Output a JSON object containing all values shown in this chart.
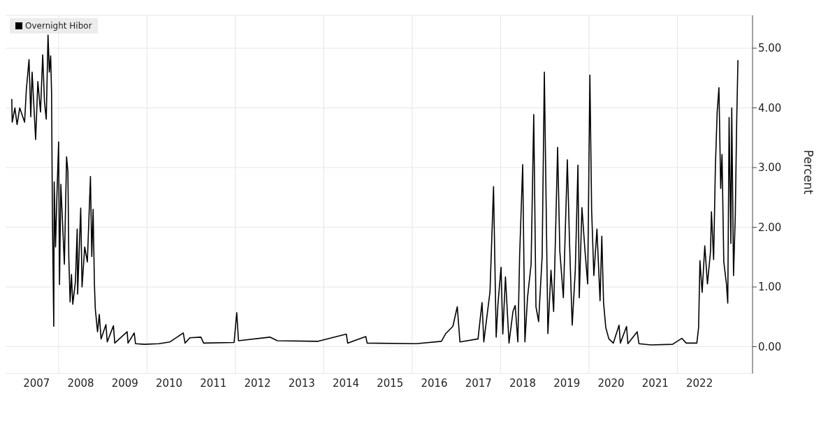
{
  "chart_data": {
    "type": "line",
    "ylabel": "Percent",
    "x": [
      2006.94,
      2006.95,
      2007.01,
      2007.06,
      2007.12,
      2007.23,
      2007.27,
      2007.33,
      2007.37,
      2007.4,
      2007.45,
      2007.48,
      2007.53,
      2007.59,
      2007.64,
      2007.68,
      2007.72,
      2007.76,
      2007.79,
      2007.82,
      2007.84,
      2007.86,
      2007.89,
      2007.9,
      2007.93,
      2007.96,
      2008.0,
      2008.02,
      2008.05,
      2008.1,
      2008.13,
      2008.18,
      2008.21,
      2008.23,
      2008.26,
      2008.29,
      2008.32,
      2008.38,
      2008.42,
      2008.43,
      2008.5,
      2008.53,
      2008.59,
      2008.65,
      2008.72,
      2008.75,
      2008.78,
      2008.81,
      2008.83,
      2008.88,
      2008.92,
      2008.96,
      2009.07,
      2009.1,
      2009.24,
      2009.27,
      2009.55,
      2009.57,
      2009.71,
      2009.74,
      2009.94,
      2010.27,
      2010.52,
      2010.82,
      2010.86,
      2010.97,
      2011.22,
      2011.28,
      2011.97,
      2012.03,
      2012.07,
      2012.78,
      2012.95,
      2013.87,
      2014.51,
      2014.54,
      2014.95,
      2014.98,
      2016.09,
      2016.66,
      2016.76,
      2016.92,
      2017.02,
      2017.08,
      2017.49,
      2017.52,
      2017.58,
      2017.62,
      2017.76,
      2017.84,
      2017.9,
      2017.94,
      2018.01,
      2018.05,
      2018.11,
      2018.19,
      2018.28,
      2018.33,
      2018.39,
      2018.43,
      2018.5,
      2018.55,
      2018.61,
      2018.69,
      2018.75,
      2018.8,
      2018.86,
      2018.94,
      2018.99,
      2019.07,
      2019.14,
      2019.2,
      2019.25,
      2019.29,
      2019.34,
      2019.42,
      2019.51,
      2019.56,
      2019.62,
      2019.69,
      2019.75,
      2019.78,
      2019.84,
      2019.91,
      2019.97,
      2020.02,
      2020.06,
      2020.11,
      2020.18,
      2020.25,
      2020.29,
      2020.33,
      2020.38,
      2020.45,
      2020.55,
      2020.68,
      2020.71,
      2020.85,
      2020.88,
      2021.09,
      2021.13,
      2021.4,
      2021.89,
      2022.1,
      2022.2,
      2022.44,
      2022.48,
      2022.51,
      2022.56,
      2022.62,
      2022.68,
      2022.75,
      2022.77,
      2022.82,
      2022.86,
      2022.9,
      2022.94,
      2022.98,
      2023.01,
      2023.05,
      2023.11,
      2023.14,
      2023.17,
      2023.21,
      2023.23,
      2023.27,
      2023.31,
      2023.34,
      2023.37
    ],
    "series": [
      {
        "name": "Overnight Hibor",
        "color": "#000000",
        "values": [
          4.15,
          3.76,
          4.0,
          3.72,
          4.0,
          3.76,
          4.31,
          4.81,
          3.85,
          4.6,
          3.89,
          3.47,
          4.44,
          3.93,
          4.89,
          4.1,
          3.81,
          5.22,
          4.6,
          4.87,
          4.26,
          2.13,
          0.34,
          2.76,
          1.67,
          2.5,
          3.43,
          1.04,
          2.72,
          1.88,
          1.38,
          3.18,
          2.93,
          1.51,
          0.75,
          1.21,
          0.71,
          1.09,
          1.97,
          0.88,
          2.32,
          1.0,
          1.67,
          1.42,
          2.85,
          1.51,
          2.3,
          1.04,
          0.63,
          0.25,
          0.54,
          0.13,
          0.37,
          0.08,
          0.35,
          0.06,
          0.25,
          0.06,
          0.23,
          0.05,
          0.04,
          0.05,
          0.08,
          0.23,
          0.06,
          0.15,
          0.16,
          0.06,
          0.07,
          0.57,
          0.1,
          0.16,
          0.1,
          0.09,
          0.21,
          0.06,
          0.17,
          0.06,
          0.05,
          0.09,
          0.22,
          0.34,
          0.67,
          0.08,
          0.13,
          0.34,
          0.74,
          0.08,
          0.92,
          2.68,
          0.16,
          0.71,
          1.33,
          0.21,
          1.17,
          0.06,
          0.59,
          0.69,
          0.08,
          1.51,
          3.05,
          0.08,
          0.83,
          1.38,
          3.89,
          0.67,
          0.42,
          1.51,
          4.6,
          0.22,
          1.28,
          0.59,
          2.1,
          3.34,
          1.6,
          0.82,
          3.13,
          1.73,
          0.36,
          1.28,
          3.04,
          0.82,
          2.33,
          1.6,
          1.05,
          4.55,
          2.28,
          1.19,
          1.97,
          0.77,
          1.85,
          0.73,
          0.32,
          0.13,
          0.06,
          0.36,
          0.06,
          0.34,
          0.05,
          0.25,
          0.05,
          0.03,
          0.04,
          0.14,
          0.06,
          0.06,
          0.32,
          1.44,
          0.91,
          1.69,
          1.05,
          1.6,
          2.26,
          1.46,
          3.02,
          3.93,
          4.34,
          2.65,
          3.22,
          1.42,
          1.05,
          0.73,
          3.84,
          1.73,
          4.0,
          1.19,
          2.19,
          3.7,
          4.8
        ]
      }
    ],
    "xlim": [
      2006.8,
      2023.7
    ],
    "xticks": [
      {
        "value": 2007.5,
        "label": "2007"
      },
      {
        "value": 2008,
        "label": null
      },
      {
        "value": 2008.5,
        "label": "2008"
      },
      {
        "value": 2009.5,
        "label": "2009"
      },
      {
        "value": 2010,
        "label": null
      },
      {
        "value": 2010.5,
        "label": "2010"
      },
      {
        "value": 2011.5,
        "label": "2011"
      },
      {
        "value": 2012,
        "label": null
      },
      {
        "value": 2012.5,
        "label": "2012"
      },
      {
        "value": 2013.5,
        "label": "2013"
      },
      {
        "value": 2014,
        "label": null
      },
      {
        "value": 2014.5,
        "label": "2014"
      },
      {
        "value": 2015.5,
        "label": "2015"
      },
      {
        "value": 2016,
        "label": null
      },
      {
        "value": 2016.5,
        "label": "2016"
      },
      {
        "value": 2017.5,
        "label": "2017"
      },
      {
        "value": 2018,
        "label": null
      },
      {
        "value": 2018.5,
        "label": "2018"
      },
      {
        "value": 2019.5,
        "label": "2019"
      },
      {
        "value": 2020,
        "label": null
      },
      {
        "value": 2020.5,
        "label": "2020"
      },
      {
        "value": 2021.5,
        "label": "2021"
      },
      {
        "value": 2022,
        "label": null
      },
      {
        "value": 2022.5,
        "label": "2022"
      }
    ],
    "ylim": [
      -0.45,
      5.55
    ],
    "yticks": [
      {
        "value": 0,
        "label": "0.00"
      },
      {
        "value": 1,
        "label": "1.00"
      },
      {
        "value": 2,
        "label": "2.00"
      },
      {
        "value": 3,
        "label": "3.00"
      },
      {
        "value": 4,
        "label": "4.00"
      },
      {
        "value": 5,
        "label": "5.00"
      }
    ],
    "grid": true,
    "legend": "top left"
  }
}
